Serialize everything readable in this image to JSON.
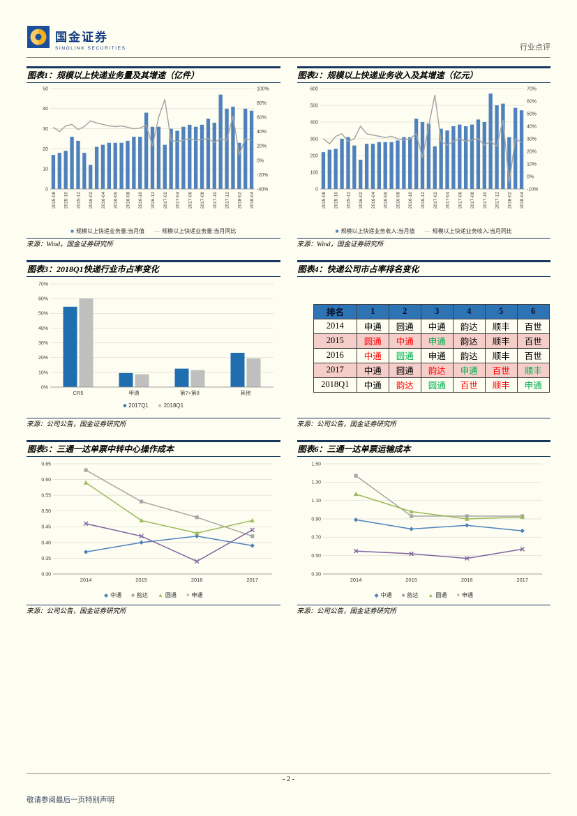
{
  "page": {
    "brand_cn": "国金证券",
    "brand_en": "SINOLINK SECURITIES",
    "header_right": "行业点评",
    "page_number": "- 2 -",
    "footer_left": "敬请参阅最后一页特别声明"
  },
  "colors": {
    "accent_navy": "#17375E",
    "bar_blue": "#4F81BD",
    "line_gray": "#A6A6A6",
    "bar3_blue": "#1F6FB0",
    "bar3_gray": "#BFBFBF",
    "table_header_blue": "#2E74B5",
    "table_highlight_pink": "#F5CDC9",
    "rank_up_red": "#FF0000",
    "rank_down_green": "#00B050",
    "zto_blue": "#4F81BD",
    "yunda_gray": "#A6A6A6",
    "yto_green": "#9BBB59",
    "sto_purple": "#8064A2"
  },
  "chart_data": [
    {
      "id": "chart1",
      "type": "bar",
      "title": "图表1：规模以上快递业务量及其增速（亿件）",
      "source": "来源：Wind，国金证券研究所",
      "bars": {
        "name": "规模以上快递业务量:当月值",
        "values": [
          17,
          18,
          19,
          26,
          24,
          18,
          12,
          21,
          22,
          23,
          23,
          23,
          24,
          26,
          26,
          38,
          31,
          31,
          22,
          30,
          29,
          31,
          32,
          31,
          32,
          35,
          33,
          47,
          40,
          41,
          23,
          40,
          39
        ]
      },
      "line": {
        "name": "规模以上快递业务量:当月同比",
        "values": [
          46,
          40,
          48,
          50,
          43,
          47,
          55,
          52,
          50,
          48,
          47,
          48,
          46,
          44,
          45,
          49,
          20,
          60,
          85,
          28,
          26,
          28,
          30,
          28,
          29,
          30,
          25,
          30,
          28,
          62,
          8,
          30,
          28
        ]
      },
      "x_labels": [
        "2015-08",
        "2015-10",
        "2015-12",
        "2016-02",
        "2016-04",
        "2016-06",
        "2016-08",
        "2016-10",
        "2016-12",
        "2017-02",
        "2017-04",
        "2017-06",
        "2017-08",
        "2017-10",
        "2017-12",
        "2018-02",
        "2018-04"
      ],
      "left_axis": {
        "min": 0,
        "max": 50,
        "step": 10
      },
      "right_axis": {
        "min": -40,
        "max": 100,
        "step": 20
      }
    },
    {
      "id": "chart2",
      "type": "bar",
      "title": "图表2：规模以上快递业务收入及其增速（亿元）",
      "source": "来源：Wind，国金证券研究所",
      "bars": {
        "name": "规模以上快递业务收入:当月值",
        "values": [
          220,
          235,
          240,
          300,
          310,
          260,
          175,
          270,
          270,
          280,
          280,
          280,
          290,
          310,
          310,
          420,
          400,
          390,
          255,
          360,
          350,
          375,
          385,
          375,
          385,
          415,
          400,
          570,
          500,
          510,
          310,
          485,
          470
        ]
      },
      "line": {
        "name": "规模以上快递业务收入:当月同比",
        "values": [
          30,
          26,
          32,
          34,
          28,
          30,
          40,
          34,
          33,
          32,
          31,
          32,
          30,
          29,
          30,
          34,
          15,
          40,
          65,
          28,
          25,
          28,
          30,
          28,
          29,
          30,
          25,
          28,
          24,
          45,
          -5,
          30,
          27
        ]
      },
      "x_labels": [
        "2015-08",
        "2015-10",
        "2015-12",
        "2016-02",
        "2016-04",
        "2016-06",
        "2016-08",
        "2016-10",
        "2016-12",
        "2017-02",
        "2017-04",
        "2017-06",
        "2017-08",
        "2017-10",
        "2017-12",
        "2018-02",
        "2018-04"
      ],
      "left_axis": {
        "min": 0,
        "max": 600,
        "step": 100
      },
      "right_axis": {
        "min": -10,
        "max": 70,
        "step": 10
      }
    },
    {
      "id": "chart3",
      "type": "bar",
      "title": "图表3：2018Q1快递行业市占率变化",
      "source": "来源：公司公告，国金证券研究所",
      "categories": [
        "CR5",
        "申通",
        "第7+第8",
        "其他"
      ],
      "series": [
        {
          "name": "2017Q1",
          "values": [
            54.5,
            9.5,
            12.5,
            23.2
          ]
        },
        {
          "name": "2018Q1",
          "values": [
            60.2,
            8.7,
            11.5,
            19.5
          ]
        }
      ],
      "y_axis": {
        "min": 0,
        "max": 70,
        "step": 10
      }
    },
    {
      "id": "chart4",
      "type": "table",
      "title": "图表4：快递公司市占率排名变化",
      "source": "来源：公司公告，国金证券研究所",
      "columns": [
        "排名",
        "1",
        "2",
        "3",
        "4",
        "5",
        "6"
      ],
      "rows": [
        {
          "year": "2014",
          "cells": [
            "申通",
            "圆通",
            "中通",
            "韵达",
            "顺丰",
            "百世"
          ],
          "cell_colors": [
            "black",
            "black",
            "black",
            "black",
            "black",
            "black"
          ],
          "highlight": false
        },
        {
          "year": "2015",
          "cells": [
            "圆通",
            "中通",
            "申通",
            "韵达",
            "顺丰",
            "百世"
          ],
          "cell_colors": [
            "red",
            "red",
            "green",
            "black",
            "black",
            "black"
          ],
          "highlight": true
        },
        {
          "year": "2016",
          "cells": [
            "中通",
            "圆通",
            "申通",
            "韵达",
            "顺丰",
            "百世"
          ],
          "cell_colors": [
            "red",
            "green",
            "black",
            "black",
            "black",
            "black"
          ],
          "highlight": false
        },
        {
          "year": "2017",
          "cells": [
            "中通",
            "圆通",
            "韵达",
            "申通",
            "百世",
            "顺丰"
          ],
          "cell_colors": [
            "black",
            "black",
            "red",
            "green",
            "red",
            "green"
          ],
          "highlight": true
        },
        {
          "year": "2018Q1",
          "cells": [
            "中通",
            "韵达",
            "圆通",
            "百世",
            "顺丰",
            "申通"
          ],
          "cell_colors": [
            "black",
            "red",
            "green",
            "red",
            "red",
            "green"
          ],
          "highlight": false
        }
      ]
    },
    {
      "id": "chart5",
      "type": "line",
      "title": "图表5：三通一达单票中转中心操作成本",
      "source": "来源：公司公告，国金证券研究所",
      "x": [
        "2014",
        "2015",
        "2016",
        "2017"
      ],
      "series": [
        {
          "name": "中通",
          "marker": "diamond",
          "values": [
            0.37,
            0.4,
            0.42,
            0.39
          ]
        },
        {
          "name": "韵达",
          "marker": "square",
          "values": [
            0.63,
            0.53,
            0.48,
            0.42
          ]
        },
        {
          "name": "圆通",
          "marker": "triangle",
          "values": [
            0.59,
            0.47,
            0.43,
            0.47
          ]
        },
        {
          "name": "申通",
          "marker": "x",
          "values": [
            0.46,
            0.42,
            0.34,
            0.44
          ]
        }
      ],
      "y_axis": {
        "min": 0.3,
        "max": 0.65,
        "step": 0.05,
        "decimals": 2
      }
    },
    {
      "id": "chart6",
      "type": "line",
      "title": "图表6：三通一达单票运输成本",
      "source": "来源：公司公告，国金证券研究所",
      "x": [
        "2014",
        "2015",
        "2016",
        "2017"
      ],
      "series": [
        {
          "name": "中通",
          "marker": "diamond",
          "values": [
            0.89,
            0.79,
            0.83,
            0.77
          ]
        },
        {
          "name": "韵达",
          "marker": "square",
          "values": [
            1.37,
            0.93,
            0.93,
            0.93
          ]
        },
        {
          "name": "圆通",
          "marker": "triangle",
          "values": [
            1.17,
            0.98,
            0.9,
            0.92
          ]
        },
        {
          "name": "申通",
          "marker": "x",
          "values": [
            0.55,
            0.52,
            0.47,
            0.57
          ]
        }
      ],
      "y_axis": {
        "min": 0.3,
        "max": 1.5,
        "step": 0.2,
        "decimals": 2
      }
    }
  ]
}
